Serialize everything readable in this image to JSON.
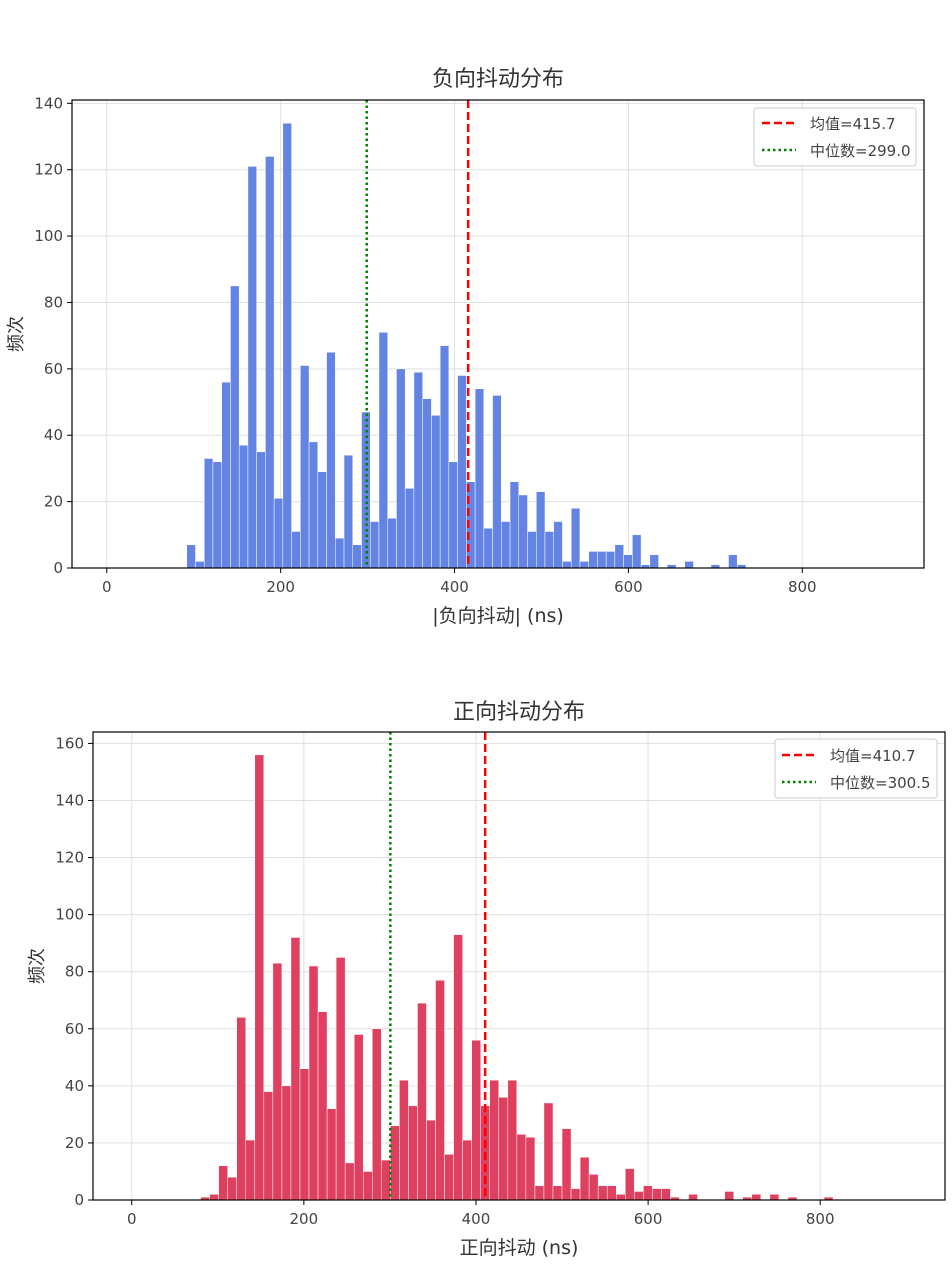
{
  "chart_data": [
    {
      "type": "bar",
      "title": "负向抖动分布",
      "xlabel": "|负向抖动| (ns)",
      "ylabel": "频次",
      "xlim": [
        -40,
        940
      ],
      "ylim": [
        0,
        141
      ],
      "xticks": [
        0,
        200,
        400,
        600,
        800
      ],
      "yticks": [
        0,
        20,
        40,
        60,
        80,
        100,
        120,
        140
      ],
      "grid": true,
      "legend_position": "top-right",
      "bar_color": "#6484e4",
      "bin_start": 92,
      "bin_width": 10.05,
      "values": [
        7,
        2,
        33,
        32,
        56,
        85,
        37,
        121,
        35,
        124,
        21,
        134,
        11,
        61,
        38,
        29,
        65,
        9,
        34,
        7,
        47,
        14,
        71,
        15,
        60,
        24,
        59,
        51,
        46,
        67,
        32,
        58,
        26,
        54,
        12,
        52,
        14,
        26,
        22,
        11,
        23,
        11,
        14,
        2,
        18,
        2,
        5,
        5,
        5,
        7,
        4,
        10,
        1,
        4,
        0,
        1,
        0,
        2,
        0,
        0,
        1,
        0,
        4,
        1
      ],
      "series": [
        {
          "name": "均值=415.7",
          "value": 415.7,
          "style": "dashed",
          "color": "#ff0000"
        },
        {
          "name": "中位数=299.0",
          "value": 299.0,
          "style": "dotted",
          "color": "#008000"
        }
      ]
    },
    {
      "type": "bar",
      "title": "正向抖动分布",
      "xlabel": "正向抖动 (ns)",
      "ylabel": "频次",
      "xlim": [
        -45,
        945
      ],
      "ylim": [
        0,
        164
      ],
      "xticks": [
        0,
        200,
        400,
        600,
        800
      ],
      "yticks": [
        0,
        20,
        40,
        60,
        80,
        100,
        120,
        140,
        160
      ],
      "grid": true,
      "legend_position": "top-right",
      "bar_color": "#e04060",
      "bin_start": 80,
      "bin_width": 10.5,
      "values": [
        1,
        2,
        12,
        8,
        64,
        21,
        156,
        38,
        83,
        40,
        92,
        46,
        82,
        66,
        32,
        85,
        13,
        58,
        10,
        60,
        14,
        26,
        42,
        33,
        69,
        28,
        77,
        16,
        93,
        21,
        56,
        33,
        42,
        36,
        42,
        23,
        22,
        5,
        34,
        5,
        25,
        4,
        15,
        9,
        5,
        5,
        2,
        11,
        3,
        5,
        4,
        4,
        1,
        0,
        2,
        0,
        0,
        0,
        3,
        0,
        1,
        2,
        0,
        2,
        0,
        1,
        0,
        0,
        0,
        1
      ],
      "series": [
        {
          "name": "均值=410.7",
          "value": 410.7,
          "style": "dashed",
          "color": "#ff0000"
        },
        {
          "name": "中位数=300.5",
          "value": 300.5,
          "style": "dotted",
          "color": "#008000"
        }
      ]
    }
  ]
}
